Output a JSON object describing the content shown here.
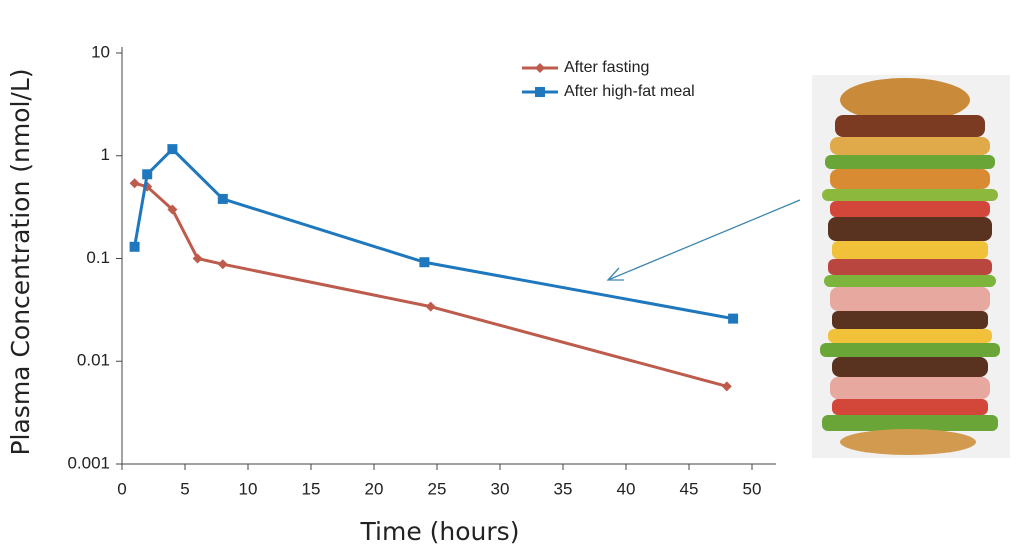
{
  "chart_data": {
    "type": "line",
    "x_label": "Time (hours)",
    "y_label": "Plasma Concentration (nmol/L)",
    "xlim": [
      0,
      50
    ],
    "xticks": [
      0,
      5,
      10,
      15,
      20,
      25,
      30,
      35,
      40,
      45,
      50
    ],
    "ylim": [
      0.001,
      10
    ],
    "yticks": [
      0.001,
      0.01,
      0.1,
      1,
      10
    ],
    "y_scale": "log",
    "legend": "upper right",
    "series": [
      {
        "name": "After fasting",
        "color": "#bd5b4c",
        "marker": "diamond",
        "x": [
          1,
          2,
          4,
          6,
          8,
          24.5,
          48
        ],
        "values": [
          0.54,
          0.5,
          0.3,
          0.1,
          0.088,
          0.034,
          0.0057
        ]
      },
      {
        "name": "After high-fat meal",
        "color": "#1f78bd",
        "marker": "square",
        "x": [
          1,
          2,
          4,
          8,
          24,
          48.5
        ],
        "values": [
          0.13,
          0.66,
          1.16,
          0.38,
          0.092,
          0.026
        ]
      }
    ]
  }
}
